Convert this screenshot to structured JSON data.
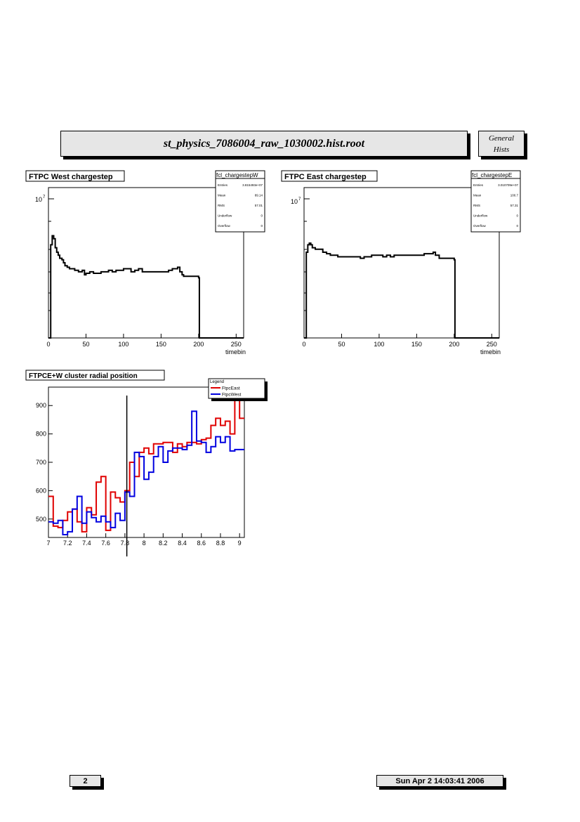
{
  "header": {
    "file_title": "st_physics_7086004_raw_1030002.hist.root",
    "tag_line1": "General",
    "tag_line2": "Hists"
  },
  "footer": {
    "page_number": "2",
    "timestamp": "Sun Apr  2 14:03:41 2006"
  },
  "colors": {
    "histogram": "#000000",
    "east": "#e00000",
    "west": "#0000e0",
    "panel_fill": "#e6e6e6"
  },
  "chart_data": [
    {
      "type": "line",
      "title": "FTPC West chargestep",
      "xlabel": "timebin",
      "ylabel": "",
      "xlim": [
        0,
        260
      ],
      "ylog": true,
      "y_tick_label_base": "10",
      "y_tick_label_exp": "7",
      "x_ticks": [
        0,
        50,
        100,
        150,
        200,
        250
      ],
      "stats": {
        "name": "fcl_chargestepW",
        "rows": [
          {
            "label": "Entries",
            "value": "3.815493e+07"
          },
          {
            "label": "Mean",
            "value": "89.14"
          },
          {
            "label": "RMS",
            "value": "57.01"
          },
          {
            "label": "Underflow",
            "value": "0"
          },
          {
            "label": "Overflow",
            "value": "0"
          }
        ]
      },
      "x": [
        0,
        3,
        3,
        5,
        7,
        9,
        11,
        13,
        15,
        18,
        20,
        22,
        25,
        28,
        30,
        35,
        40,
        45,
        48,
        50,
        55,
        60,
        65,
        70,
        75,
        80,
        85,
        90,
        95,
        100,
        105,
        110,
        115,
        120,
        125,
        130,
        135,
        140,
        145,
        150,
        155,
        160,
        165,
        170,
        172,
        175,
        178,
        180,
        185,
        190,
        195,
        200,
        201,
        260
      ],
      "y": [
        0.0,
        0.0,
        0.62,
        0.68,
        0.66,
        0.6,
        0.57,
        0.55,
        0.53,
        0.52,
        0.5,
        0.48,
        0.47,
        0.46,
        0.46,
        0.45,
        0.44,
        0.45,
        0.42,
        0.43,
        0.44,
        0.43,
        0.43,
        0.44,
        0.44,
        0.45,
        0.44,
        0.45,
        0.45,
        0.46,
        0.46,
        0.44,
        0.45,
        0.46,
        0.44,
        0.44,
        0.44,
        0.44,
        0.44,
        0.44,
        0.44,
        0.45,
        0.46,
        0.46,
        0.47,
        0.44,
        0.42,
        0.41,
        0.41,
        0.41,
        0.41,
        0.4,
        0.0,
        0.0
      ]
    },
    {
      "type": "line",
      "title": "FTPC East chargestep",
      "xlabel": "timebin",
      "ylabel": "",
      "xlim": [
        0,
        260
      ],
      "ylog": true,
      "y_tick_label_base": "10",
      "y_tick_label_exp": "7",
      "x_ticks": [
        0,
        50,
        100,
        150,
        200,
        250
      ],
      "stats": {
        "name": "fcl_chargestepE",
        "rows": [
          {
            "label": "Entries",
            "value": "3.010709e+07"
          },
          {
            "label": "Mean",
            "value": "100.7"
          },
          {
            "label": "RMS",
            "value": "57.31"
          },
          {
            "label": "Underflow",
            "value": "0"
          },
          {
            "label": "Overflow",
            "value": "0"
          }
        ]
      },
      "x": [
        0,
        3,
        3,
        5,
        7,
        9,
        11,
        13,
        15,
        20,
        25,
        30,
        35,
        40,
        45,
        50,
        55,
        60,
        65,
        70,
        75,
        80,
        85,
        90,
        95,
        100,
        105,
        110,
        115,
        120,
        125,
        130,
        135,
        140,
        145,
        150,
        155,
        160,
        165,
        170,
        172,
        175,
        180,
        185,
        190,
        195,
        200,
        201,
        260
      ],
      "y": [
        0.0,
        0.0,
        0.57,
        0.62,
        0.63,
        0.62,
        0.6,
        0.6,
        0.59,
        0.59,
        0.57,
        0.56,
        0.55,
        0.55,
        0.54,
        0.54,
        0.54,
        0.54,
        0.54,
        0.54,
        0.53,
        0.54,
        0.54,
        0.55,
        0.55,
        0.55,
        0.54,
        0.55,
        0.54,
        0.55,
        0.55,
        0.55,
        0.55,
        0.55,
        0.55,
        0.55,
        0.55,
        0.56,
        0.56,
        0.56,
        0.57,
        0.55,
        0.53,
        0.53,
        0.53,
        0.53,
        0.52,
        0.0,
        0.0
      ]
    },
    {
      "type": "line",
      "title": "FTPCE+W cluster radial position",
      "xlabel": "",
      "ylabel": "",
      "xlim": [
        7.0,
        9.05
      ],
      "ylim": [
        435,
        965
      ],
      "x_ticks": [
        7,
        7.2,
        7.4,
        7.6,
        7.8,
        8,
        8.2,
        8.4,
        8.6,
        8.8,
        9
      ],
      "y_ticks": [
        500,
        600,
        700,
        800,
        900
      ],
      "legend_title": "Legend",
      "cut_line_x": 7.82,
      "series": [
        {
          "name": "FtpcEast",
          "bin_edges": [
            7.0,
            7.05,
            7.1,
            7.15,
            7.2,
            7.25,
            7.3,
            7.35,
            7.4,
            7.45,
            7.5,
            7.55,
            7.6,
            7.65,
            7.7,
            7.75,
            7.8,
            7.85,
            7.9,
            7.95,
            8.0,
            8.05,
            8.1,
            8.15,
            8.2,
            8.25,
            8.3,
            8.35,
            8.4,
            8.45,
            8.5,
            8.55,
            8.6,
            8.65,
            8.7,
            8.75,
            8.8,
            8.85,
            8.9,
            8.95,
            9.0,
            9.05
          ],
          "values": [
            580,
            475,
            470,
            495,
            525,
            535,
            490,
            455,
            540,
            515,
            630,
            650,
            460,
            595,
            575,
            560,
            600,
            700,
            650,
            735,
            750,
            730,
            765,
            765,
            770,
            770,
            735,
            765,
            755,
            770,
            770,
            765,
            780,
            785,
            830,
            855,
            830,
            845,
            800,
            965,
            855
          ]
        },
        {
          "name": "FtpcWest",
          "bin_edges": [
            7.0,
            7.05,
            7.1,
            7.15,
            7.2,
            7.25,
            7.3,
            7.35,
            7.4,
            7.45,
            7.5,
            7.55,
            7.6,
            7.65,
            7.7,
            7.75,
            7.8,
            7.85,
            7.9,
            7.95,
            8.0,
            8.05,
            8.1,
            8.15,
            8.2,
            8.25,
            8.3,
            8.35,
            8.4,
            8.45,
            8.5,
            8.55,
            8.6,
            8.65,
            8.7,
            8.75,
            8.8,
            8.85,
            8.9,
            8.95,
            9.0,
            9.05
          ],
          "values": [
            490,
            485,
            495,
            445,
            455,
            535,
            580,
            485,
            525,
            505,
            490,
            510,
            490,
            470,
            520,
            495,
            595,
            580,
            735,
            720,
            640,
            665,
            720,
            755,
            700,
            740,
            750,
            750,
            745,
            760,
            880,
            775,
            770,
            735,
            755,
            790,
            770,
            790,
            740,
            745,
            745
          ]
        }
      ]
    }
  ]
}
